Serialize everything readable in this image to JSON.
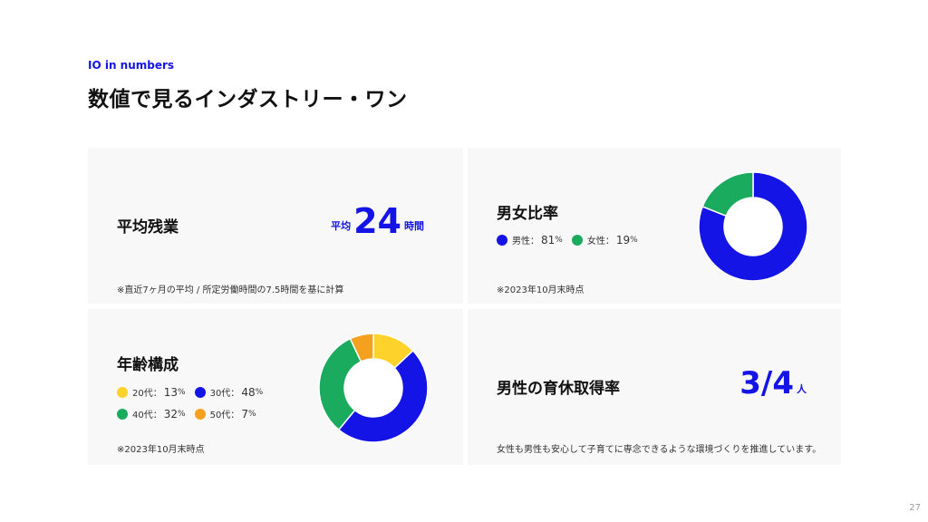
{
  "header": {
    "eyebrow": "IO in numbers",
    "title": "数値で見るインダストリー・ワン"
  },
  "overtime": {
    "title": "平均残業",
    "prefix": "平均",
    "value": "24",
    "unit": "時間",
    "note": "※直近7ヶ月の平均 / 所定労働時間の7.5時間を基に計算"
  },
  "gender": {
    "title": "男女比率",
    "note": "※2023年10月末時点",
    "legend": [
      {
        "label": "男性：",
        "value": "81",
        "pct": "%",
        "color": "#1414e6"
      },
      {
        "label": "女性：",
        "value": "19",
        "pct": "%",
        "color": "#1aab5e"
      }
    ]
  },
  "age": {
    "title": "年齢構成",
    "note": "※2023年10月末時点",
    "legend": [
      {
        "label": "20代：",
        "value": "13",
        "pct": "%",
        "color": "#fcd22b"
      },
      {
        "label": "30代：",
        "value": "48",
        "pct": "%",
        "color": "#1414e6"
      },
      {
        "label": "40代：",
        "value": "32",
        "pct": "%",
        "color": "#1aab5e"
      },
      {
        "label": "50代：",
        "value": "7",
        "pct": "%",
        "color": "#f5a01f"
      }
    ]
  },
  "leave": {
    "title": "男性の育休取得率",
    "value": "3/4",
    "unit": "人",
    "note": "女性も男性も安心して子育てに専念できるような環境づくりを推進しています。"
  },
  "page_number": "27",
  "chart_data": [
    {
      "type": "pie",
      "categories": [
        "男性",
        "女性"
      ],
      "values": [
        81,
        19
      ],
      "colors": [
        "#1414e6",
        "#1aab5e"
      ]
    },
    {
      "type": "pie",
      "categories": [
        "20代",
        "30代",
        "40代",
        "50代"
      ],
      "values": [
        13,
        48,
        32,
        7
      ],
      "colors": [
        "#fcd22b",
        "#1414e6",
        "#1aab5e",
        "#f5a01f"
      ]
    }
  ]
}
